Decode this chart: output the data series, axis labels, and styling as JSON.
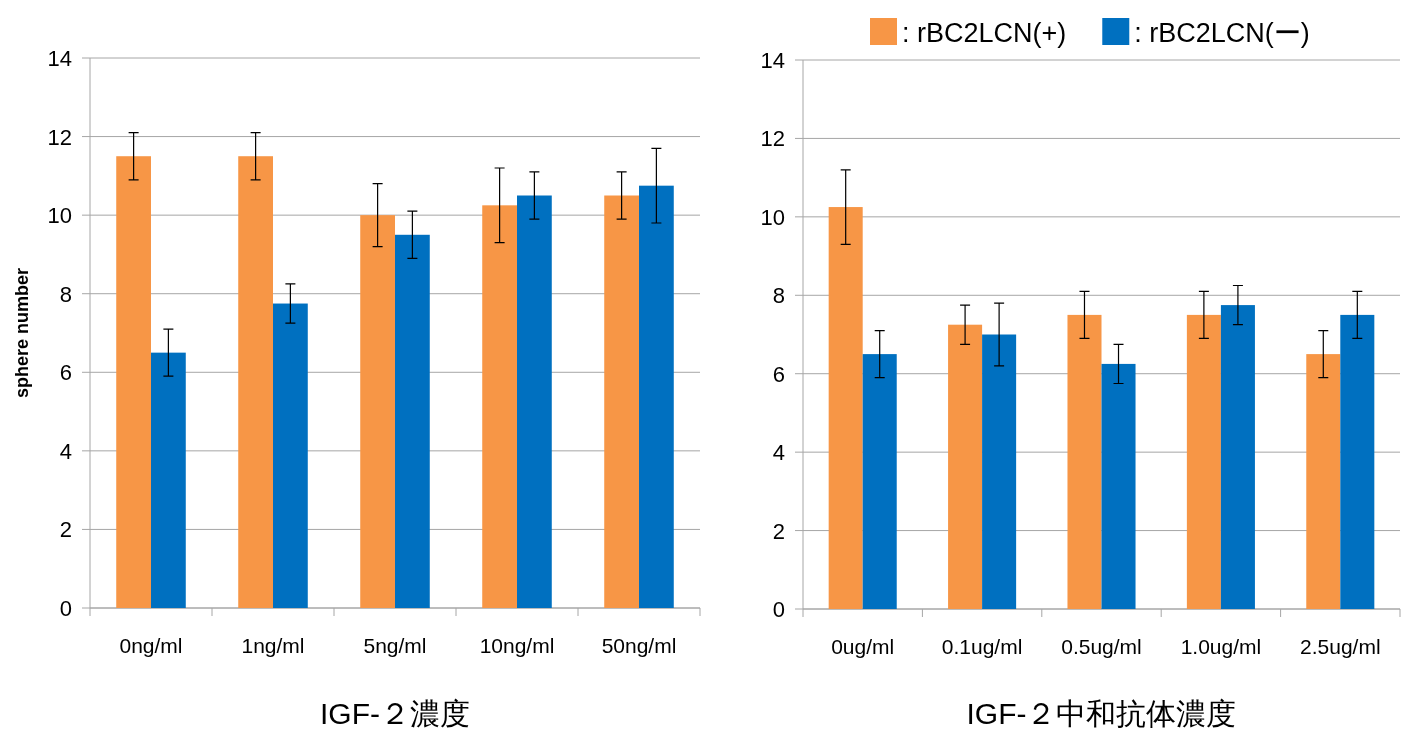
{
  "chart_data": [
    {
      "type": "bar",
      "xlabel": "IGF-２濃度",
      "ylabel": "sphere number",
      "categories": [
        "0ng/ml",
        "1ng/ml",
        "5ng/ml",
        "10ng/ml",
        "50ng/ml"
      ],
      "ylim": [
        0,
        14
      ],
      "yticks": [
        0,
        2,
        4,
        6,
        8,
        10,
        12,
        14
      ],
      "grid": "y",
      "legend": false,
      "series": [
        {
          "color": "#f79646",
          "values": [
            11.5,
            11.5,
            10,
            10.25,
            10.5
          ],
          "errors": [
            0.6,
            0.6,
            0.8,
            0.95,
            0.6
          ]
        },
        {
          "color": "#0070c0",
          "values": [
            6.5,
            7.75,
            9.5,
            10.5,
            10.75
          ],
          "errors": [
            0.6,
            0.5,
            0.6,
            0.6,
            0.95
          ]
        }
      ]
    },
    {
      "type": "bar",
      "xlabel": "IGF-２中和抗体濃度",
      "categories": [
        "0ug/ml",
        "0.1ug/ml",
        "0.5ug/ml",
        "1.0ug/ml",
        "2.5ug/ml"
      ],
      "ylim": [
        0,
        14
      ],
      "yticks": [
        0,
        2,
        4,
        6,
        8,
        10,
        12,
        14
      ],
      "grid": "y",
      "legend": "top right",
      "series": [
        {
          "name": ": rBC2LCN(+)",
          "color": "#f79646",
          "values": [
            10.25,
            7.25,
            7.5,
            7.5,
            6.5
          ],
          "errors": [
            0.95,
            0.5,
            0.6,
            0.6,
            0.6
          ]
        },
        {
          "name": ": rBC2LCN(ー)",
          "color": "#0070c0",
          "values": [
            6.5,
            7,
            6.25,
            7.75,
            7.5
          ],
          "errors": [
            0.6,
            0.8,
            0.5,
            0.5,
            0.6
          ]
        }
      ]
    }
  ]
}
